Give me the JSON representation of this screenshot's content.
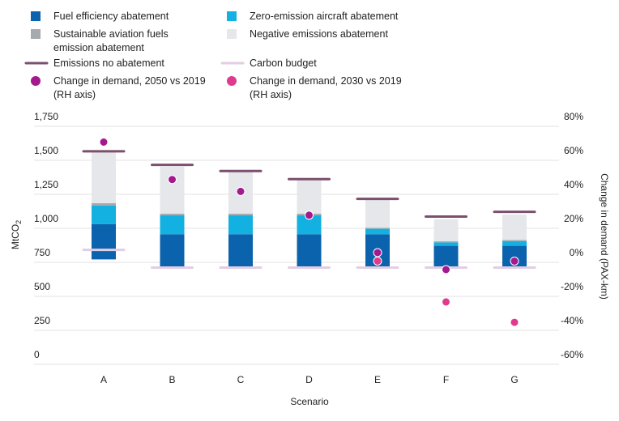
{
  "chart_data": {
    "type": "bar",
    "stacked": true,
    "xlabel": "Scenario",
    "ylabel": "MtCO",
    "ylabel_subscript": "2",
    "y2label": "Change in demand (PAX-km)",
    "ylim": [
      0,
      1750
    ],
    "y2lim": [
      -60,
      80
    ],
    "yticks": [
      "0",
      "250",
      "500",
      "750",
      "1,000",
      "1,250",
      "1,500",
      "1,750"
    ],
    "y2ticks": [
      "-60%",
      "-40%",
      "-20%",
      "0%",
      "20%",
      "40%",
      "60%",
      "80%"
    ],
    "grid": true,
    "legend_position": "top",
    "categories": [
      "A",
      "B",
      "C",
      "D",
      "E",
      "F",
      "G"
    ],
    "series": [
      {
        "name": "Fuel efficiency abatement",
        "color": "#0b63ad",
        "base": [
          700,
          635,
          635,
          635,
          635,
          635,
          635
        ],
        "values": [
          260,
          250,
          250,
          250,
          250,
          165,
          165
        ]
      },
      {
        "name": "Zero-emission aircraft abatement",
        "color": "#13b0e2",
        "values": [
          135,
          140,
          140,
          140,
          40,
          25,
          35
        ]
      },
      {
        "name": "Sustainable aviation fuels emission abatement",
        "color": "#a6a9ae",
        "values": [
          18,
          12,
          12,
          12,
          8,
          8,
          8
        ]
      },
      {
        "name": "Negative emissions abatement",
        "color": "#e6e7ea",
        "values": [
          380,
          345,
          310,
          255,
          218,
          162,
          187
        ]
      },
      {
        "name": "Emissions no abatement",
        "color": "#7b4f6e",
        "type": "marker-line",
        "values": [
          1495,
          1395,
          1350,
          1290,
          1145,
          1015,
          1050
        ]
      },
      {
        "name": "Carbon budget",
        "color": "#e3cde3",
        "type": "marker-line",
        "values": [
          770,
          640,
          640,
          640,
          640,
          640,
          640
        ]
      },
      {
        "name": "Change in demand, 2050 vs 2019\n(RH axis)",
        "color": "#a4198d",
        "type": "scatter",
        "axis": "right",
        "values": [
          65,
          43,
          36,
          22,
          0,
          -10,
          -5
        ]
      },
      {
        "name": "Change in demand, 2030 vs 2019\n(RH axis)",
        "color": "#e03a8f",
        "type": "scatter",
        "axis": "right",
        "values": [
          null,
          null,
          null,
          null,
          -5,
          -29,
          -41
        ]
      }
    ]
  }
}
